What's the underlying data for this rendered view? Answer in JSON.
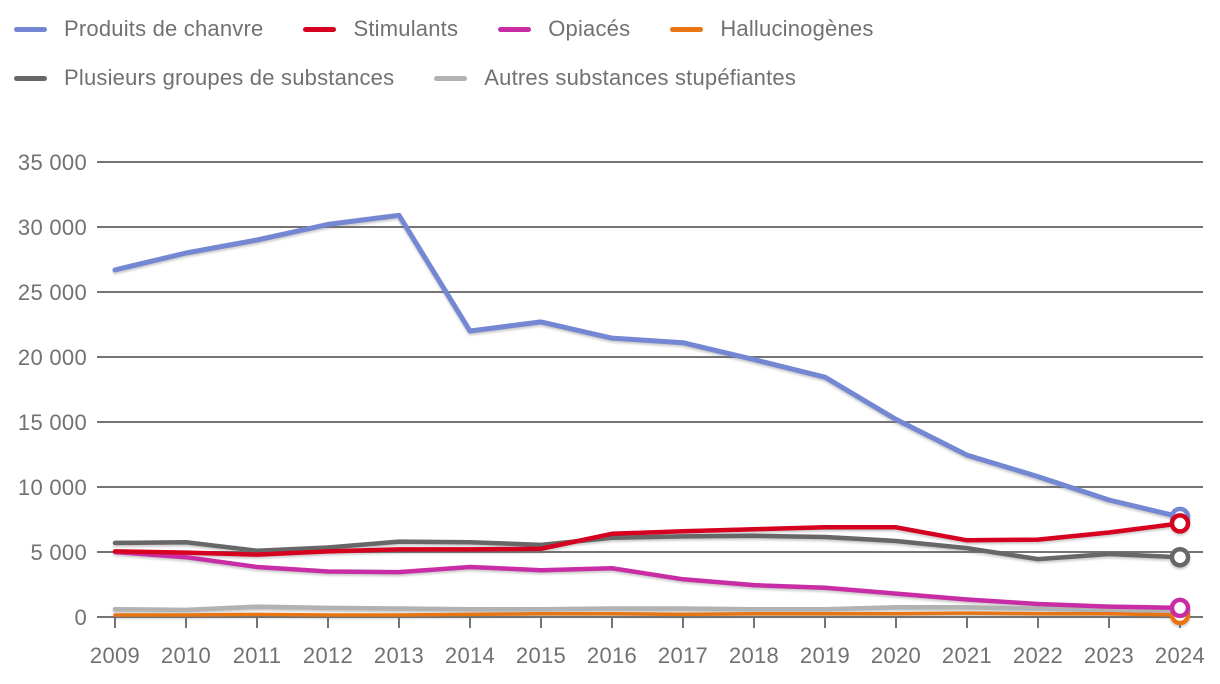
{
  "legend": {
    "rows": [
      [
        0,
        1,
        2,
        3
      ],
      [
        4,
        5
      ]
    ],
    "items": [
      {
        "id": "chanvre",
        "label": "Produits de chanvre",
        "color": "#7387d2"
      },
      {
        "id": "stimulants",
        "label": "Stimulants",
        "color": "#d6001f"
      },
      {
        "id": "opiaces",
        "label": "Opiacés",
        "color": "#c92da6"
      },
      {
        "id": "hallucinogenes",
        "label": "Hallucinogènes",
        "color": "#e87511"
      },
      {
        "id": "plusieurs",
        "label": "Plusieurs groupes de substances",
        "color": "#676767"
      },
      {
        "id": "autres",
        "label": "Autres substances stupéfiantes",
        "color": "#b2b2b2"
      }
    ]
  },
  "chart_data": {
    "type": "line",
    "title": "",
    "xlabel": "",
    "ylabel": "",
    "x": [
      2009,
      2010,
      2011,
      2012,
      2013,
      2014,
      2015,
      2016,
      2017,
      2018,
      2019,
      2020,
      2021,
      2022,
      2023,
      2024
    ],
    "ylim": [
      0,
      35000
    ],
    "grid": "horizontal",
    "legend_position": "top",
    "y_ticks": [
      {
        "value": 0,
        "label": "0"
      },
      {
        "value": 5000,
        "label": "5 000"
      },
      {
        "value": 10000,
        "label": "10 000"
      },
      {
        "value": 15000,
        "label": "15 000"
      },
      {
        "value": 20000,
        "label": "20 000"
      },
      {
        "value": 25000,
        "label": "25 000"
      },
      {
        "value": 30000,
        "label": "30 000"
      },
      {
        "value": 35000,
        "label": "35 000"
      }
    ],
    "series": [
      {
        "id": "autres",
        "name": "Autres substances stupéfiantes",
        "color": "#b2b2b2",
        "width": 4.5,
        "values": [
          600,
          550,
          800,
          700,
          650,
          600,
          600,
          650,
          650,
          600,
          600,
          750,
          750,
          650,
          500,
          450
        ]
      },
      {
        "id": "hallucinogenes",
        "name": "Hallucinogènes",
        "color": "#e87511",
        "width": 3.5,
        "values": [
          150,
          150,
          200,
          150,
          150,
          200,
          250,
          250,
          200,
          250,
          250,
          250,
          300,
          250,
          250,
          150
        ]
      },
      {
        "id": "opiaces",
        "name": "Opiacés",
        "color": "#c92da6",
        "width": 4.5,
        "values": [
          5000,
          4600,
          3850,
          3500,
          3450,
          3850,
          3600,
          3750,
          2900,
          2450,
          2250,
          1800,
          1350,
          1000,
          800,
          700
        ]
      },
      {
        "id": "plusieurs",
        "name": "Plusieurs groupes de substances",
        "color": "#676767",
        "width": 4.5,
        "values": [
          5700,
          5750,
          5100,
          5350,
          5800,
          5750,
          5550,
          6100,
          6200,
          6250,
          6150,
          5850,
          5300,
          4450,
          4850,
          4600
        ]
      },
      {
        "id": "chanvre",
        "name": "Produits de chanvre",
        "color": "#7387d2",
        "width": 5,
        "values": [
          26700,
          28000,
          29000,
          30200,
          30900,
          22000,
          22700,
          21450,
          21100,
          19800,
          18450,
          15200,
          12450,
          10800,
          9000,
          7700
        ]
      },
      {
        "id": "stimulants",
        "name": "Stimulants",
        "color": "#d6001f",
        "width": 4.5,
        "values": [
          5050,
          4950,
          4800,
          5050,
          5200,
          5200,
          5250,
          6400,
          6600,
          6750,
          6900,
          6900,
          5900,
          5950,
          6500,
          7200
        ]
      }
    ]
  },
  "style": {
    "grid_color": "#747474",
    "tick_color": "#747474",
    "marker_fill": "#ffffff"
  }
}
